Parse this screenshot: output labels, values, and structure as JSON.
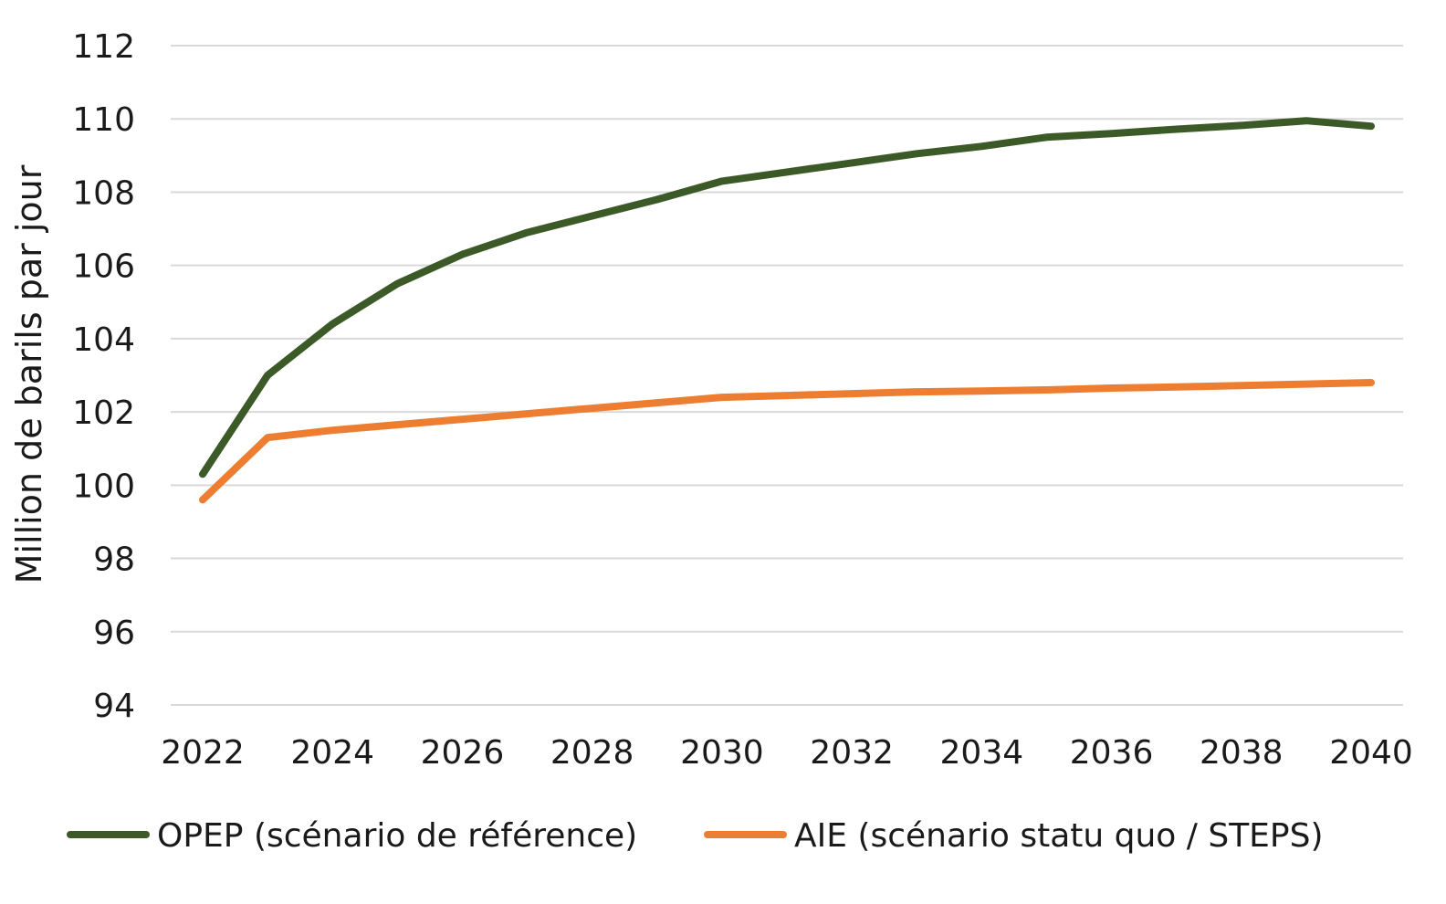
{
  "chart_data": {
    "type": "line",
    "title": "",
    "xlabel": "",
    "ylabel": "Million de barils par jour",
    "ylim": [
      94,
      112
    ],
    "xlim": [
      2022,
      2040
    ],
    "grid": true,
    "legend_position": "bottom",
    "y_ticks": [
      "94",
      "96",
      "98",
      "100",
      "102",
      "104",
      "106",
      "108",
      "110",
      "112"
    ],
    "x_ticks": [
      "2022",
      "2024",
      "2026",
      "2028",
      "2030",
      "2032",
      "2034",
      "2036",
      "2038",
      "2040"
    ],
    "colors": {
      "gridline": "#d9d9d9",
      "text": "#1a1a1a"
    },
    "series": [
      {
        "name": "OPEP (scénario de référence)",
        "color": "#3c5a27",
        "x": [
          2022,
          2023,
          2024,
          2025,
          2026,
          2027,
          2028,
          2029,
          2030,
          2031,
          2032,
          2033,
          2034,
          2035,
          2036,
          2037,
          2038,
          2039,
          2040
        ],
        "values": [
          100.3,
          103.0,
          104.4,
          105.5,
          106.3,
          106.9,
          107.35,
          107.8,
          108.3,
          108.55,
          108.8,
          109.05,
          109.25,
          109.5,
          109.6,
          109.72,
          109.82,
          109.95,
          109.8
        ]
      },
      {
        "name": "AIE (scénario statu quo / STEPS)",
        "color": "#ed7d31",
        "x": [
          2022,
          2023,
          2024,
          2025,
          2026,
          2027,
          2028,
          2029,
          2030,
          2031,
          2032,
          2033,
          2034,
          2035,
          2036,
          2037,
          2038,
          2039,
          2040
        ],
        "values": [
          99.6,
          101.3,
          101.5,
          101.65,
          101.8,
          101.95,
          102.1,
          102.25,
          102.4,
          102.45,
          102.5,
          102.55,
          102.57,
          102.6,
          102.65,
          102.68,
          102.72,
          102.76,
          102.8
        ]
      }
    ]
  }
}
